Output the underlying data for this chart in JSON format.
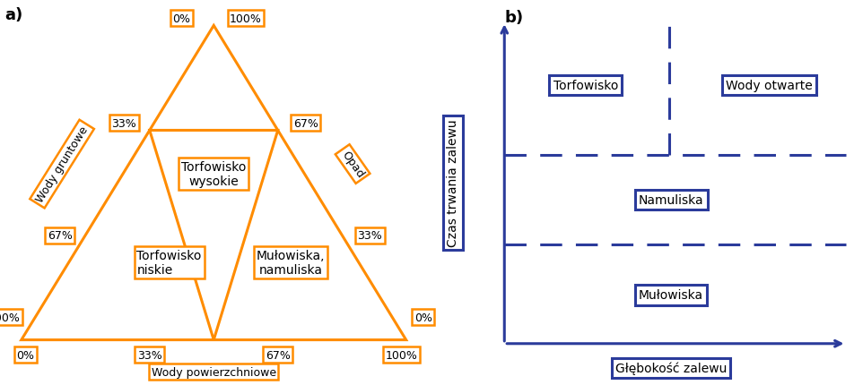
{
  "orange": "#FF8C00",
  "blue": "#2B3B9B",
  "panel_a_label": "a)",
  "panel_b_label": "b)",
  "labels": {
    "torfowisko_wysokie": "Torfowisko\nwysokie",
    "torfowisko_niskie": "Torfowisko\nniskie",
    "mulowiska_nam": "Mułowiska,\nnamuliska",
    "wody_gruntowe": "Wody gruntowe",
    "opad": "Opad",
    "wody_powierzchniowe": "Wody powierzchniowe"
  },
  "b_labels": {
    "torfowisko": "Torfowisko",
    "wody_otwarte": "Wody otwarte",
    "namuliska": "Namuliska",
    "mulowiska": "Mułowiska",
    "x_axis": "Głębokość zalewu",
    "y_axis": "Czas trwania zalewu"
  }
}
